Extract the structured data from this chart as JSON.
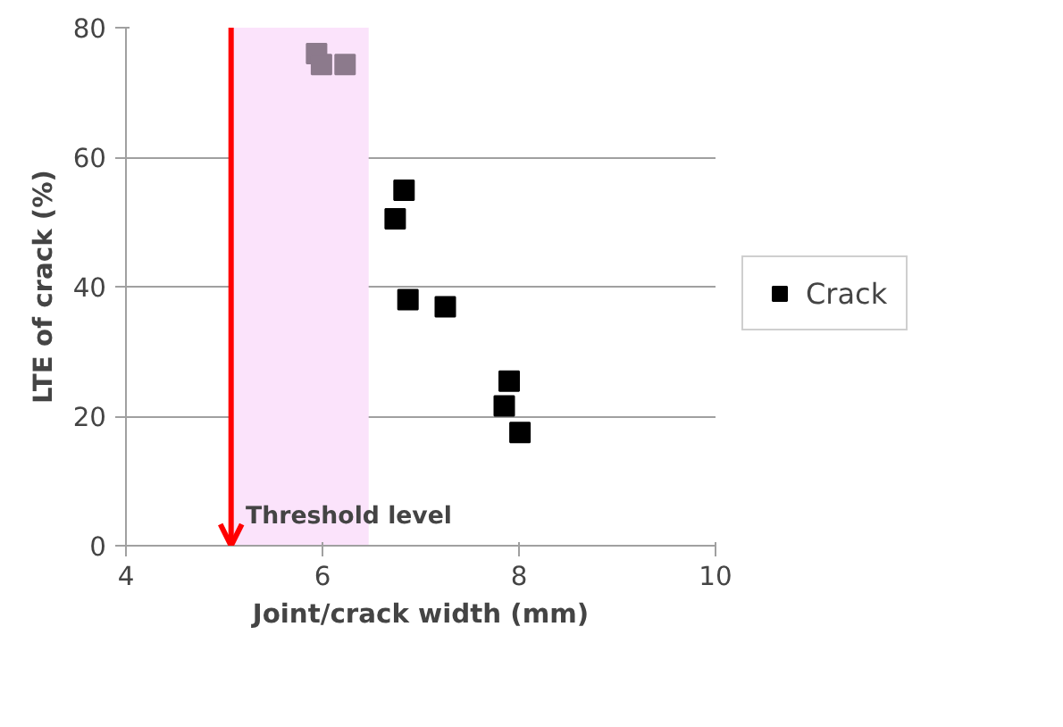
{
  "chart_data": {
    "type": "scatter",
    "xlabel": "Joint/crack width (mm)",
    "ylabel": "LTE of crack (%)",
    "series": [
      {
        "color": "#8c7a8c",
        "x": [
          5.94,
          5.99,
          6.23
        ],
        "values": [
          76,
          74.3,
          74.3
        ]
      },
      {
        "name": "Crack",
        "color": "#000000",
        "x": [
          6.83,
          6.74,
          6.87,
          7.25,
          7.9,
          7.85,
          8.01
        ],
        "values": [
          54.9,
          50.5,
          38,
          36.9,
          25.4,
          21.6,
          17.5
        ]
      }
    ],
    "xlim": [
      4,
      10
    ],
    "ylim": [
      0,
      80
    ],
    "xticks": [
      4,
      6,
      8,
      10
    ],
    "yticks": [
      0,
      20,
      40,
      60,
      80
    ],
    "grid": "y",
    "legend": "right",
    "marker": "square",
    "ref_lines": [
      {
        "axis": "x",
        "value": 5.07,
        "color": "#ff0000"
      }
    ],
    "bands": [
      {
        "axis": "x",
        "from": 5.08,
        "to": 6.47,
        "label": "Threshold level",
        "color": "#fbe3fb"
      }
    ]
  }
}
